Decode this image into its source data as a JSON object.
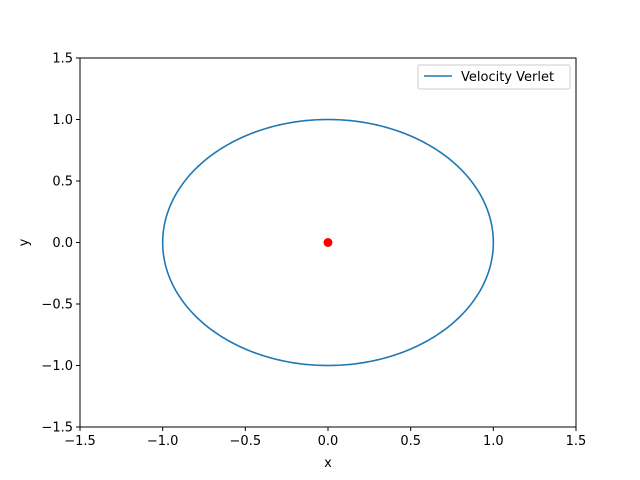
{
  "chart_data": {
    "type": "line",
    "title": "",
    "xlabel": "x",
    "ylabel": "y",
    "xlim": [
      -1.5,
      1.5
    ],
    "ylim": [
      -1.5,
      1.5
    ],
    "xticks": [
      -1.5,
      -1.0,
      -0.5,
      0.0,
      0.5,
      1.0,
      1.5
    ],
    "xtick_labels": [
      "−1.5",
      "−1.0",
      "−0.5",
      "0.0",
      "0.5",
      "1.0",
      "1.5"
    ],
    "yticks": [
      -1.5,
      -1.0,
      -0.5,
      0.0,
      0.5,
      1.0,
      1.5
    ],
    "ytick_labels": [
      "−1.5",
      "−1.0",
      "−0.5",
      "0.0",
      "0.5",
      "1.0",
      "1.5"
    ],
    "grid": false,
    "legend_position": "top-right",
    "series": [
      {
        "name": "Velocity Verlet",
        "kind": "line",
        "color": "#1f77b4",
        "shape": "circle",
        "center": [
          0.0,
          0.0
        ],
        "radius": 1.0
      }
    ],
    "points": [
      {
        "x": 0.0,
        "y": 0.0,
        "color": "#ff0000",
        "marker": "o"
      }
    ]
  }
}
